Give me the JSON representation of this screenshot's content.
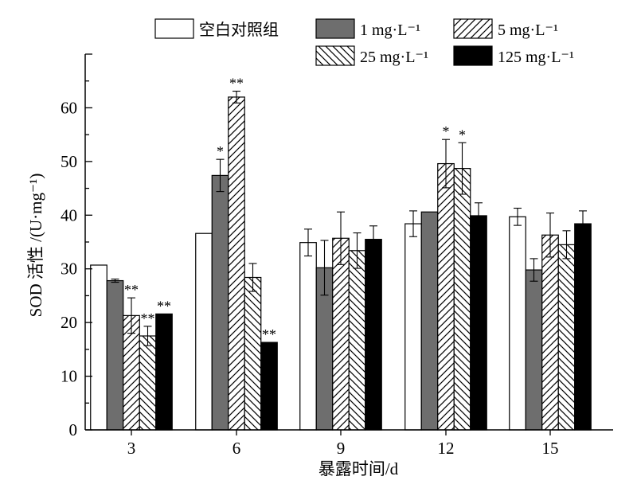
{
  "chart_data": {
    "type": "bar",
    "xlabel": "暴露时间/d",
    "ylabel": "SOD 活性 /(U·mg⁻¹)",
    "ylim": [
      0,
      70
    ],
    "yticks": [
      "0",
      "10",
      "20",
      "30",
      "40",
      "50",
      "60"
    ],
    "categories": [
      "3",
      "6",
      "9",
      "12",
      "15"
    ],
    "series": [
      {
        "name": "空白对照组",
        "fill": "white",
        "color": "#ffffff",
        "values": [
          30.7,
          36.6,
          34.9,
          38.4,
          39.7
        ],
        "errors": [
          0,
          0,
          2.5,
          2.4,
          1.6
        ],
        "sig": [
          "",
          "",
          "",
          "",
          ""
        ]
      },
      {
        "name": "1 mg·L⁻¹",
        "fill": "solid",
        "color": "#6e6e6e",
        "values": [
          27.8,
          47.4,
          30.2,
          40.6,
          29.8
        ],
        "errors": [
          0.3,
          3.0,
          5.1,
          0,
          2.1
        ],
        "sig": [
          "",
          "*",
          "",
          "",
          ""
        ]
      },
      {
        "name": "5 mg·L⁻¹",
        "fill": "diag-up",
        "color": "#ffffff",
        "values": [
          21.3,
          62.0,
          35.7,
          49.6,
          36.3
        ],
        "errors": [
          3.3,
          1.1,
          4.9,
          4.5,
          4.1
        ],
        "sig": [
          "**",
          "**",
          "",
          "*",
          ""
        ]
      },
      {
        "name": "25 mg·L⁻¹",
        "fill": "diag-down",
        "color": "#ffffff",
        "values": [
          17.5,
          28.4,
          33.4,
          48.7,
          34.5
        ],
        "errors": [
          1.8,
          2.6,
          3.3,
          4.8,
          2.6
        ],
        "sig": [
          "**",
          "",
          "",
          "*",
          ""
        ]
      },
      {
        "name": "125 mg·L⁻¹",
        "fill": "solid",
        "color": "#000000",
        "values": [
          21.6,
          16.3,
          35.5,
          39.9,
          38.4
        ],
        "errors": [
          0,
          0,
          2.5,
          2.4,
          2.4
        ],
        "sig": [
          "**",
          "**",
          "",
          "",
          ""
        ]
      }
    ]
  }
}
